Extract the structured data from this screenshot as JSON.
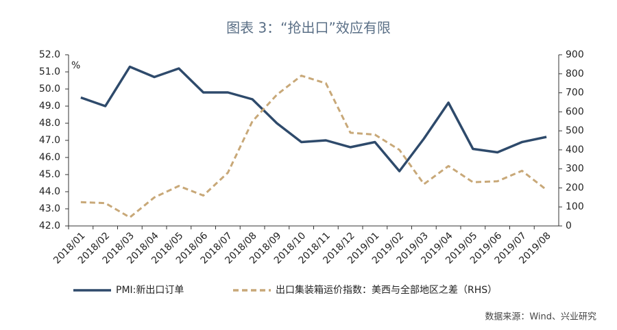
{
  "chart_data": {
    "type": "line",
    "title": "图表 3：“抢出口”效应有限",
    "y_unit_label": "%",
    "source": "数据来源：Wind、兴业研究",
    "categories": [
      "2018/01",
      "2018/02",
      "2018/03",
      "2018/04",
      "2018/05",
      "2018/06",
      "2018/07",
      "2018/08",
      "2018/09",
      "2018/10",
      "2018/11",
      "2018/12",
      "2019/01",
      "2019/02",
      "2019/03",
      "2019/04",
      "2019/05",
      "2019/06",
      "2019/07",
      "2019/08"
    ],
    "series": [
      {
        "name": "PMI:新出口订单",
        "color": "#2e4a6b",
        "axis": "y",
        "values": [
          49.5,
          49.0,
          51.3,
          50.7,
          51.2,
          49.8,
          49.8,
          49.4,
          48.0,
          46.9,
          47.0,
          46.6,
          46.9,
          45.2,
          47.1,
          49.2,
          46.5,
          46.3,
          46.9,
          47.2
        ]
      },
      {
        "name": "出口集装箱运价指数：美西与全部地区之差（RHS）",
        "color": "#c8a878",
        "axis": "y2",
        "dashed": true,
        "values": [
          125,
          120,
          45,
          150,
          210,
          160,
          280,
          550,
          690,
          790,
          750,
          490,
          480,
          400,
          220,
          315,
          230,
          235,
          290,
          190
        ]
      }
    ],
    "ylim": [
      42.0,
      52.0
    ],
    "yticks": [
      {
        "value": 42,
        "label": "42.0"
      },
      {
        "value": 43,
        "label": "43.0"
      },
      {
        "value": 44,
        "label": "44.0"
      },
      {
        "value": 45,
        "label": "45.0"
      },
      {
        "value": 46,
        "label": "46.0"
      },
      {
        "value": 47,
        "label": "47.0"
      },
      {
        "value": 48,
        "label": "48.0"
      },
      {
        "value": 49,
        "label": "49.0"
      },
      {
        "value": 50,
        "label": "50.0"
      },
      {
        "value": 51,
        "label": "51.0"
      },
      {
        "value": 52,
        "label": "52.0"
      }
    ],
    "y2lim": [
      0,
      900
    ],
    "y2ticks": [
      0,
      100,
      200,
      300,
      400,
      500,
      600,
      700,
      800,
      900
    ]
  }
}
